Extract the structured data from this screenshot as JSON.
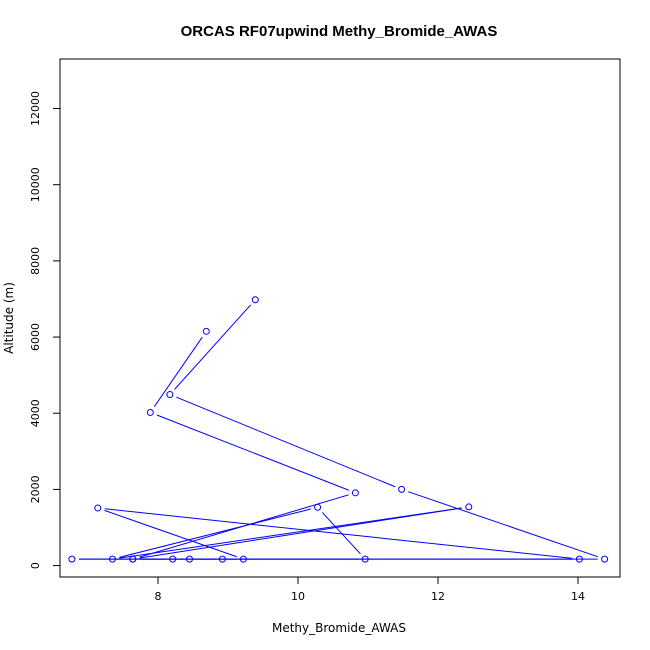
{
  "chart_data": {
    "type": "line",
    "title": "ORCAS RF07upwind Methy_Bromide_AWAS",
    "xlabel": "Methy_Bromide_AWAS",
    "ylabel": "Altitude (m)",
    "xlim": [
      6.6,
      14.6
    ],
    "ylim": [
      -300,
      13300
    ],
    "xticks": [
      8,
      10,
      12,
      14
    ],
    "yticks": [
      0,
      2000,
      4000,
      6000,
      8000,
      10000,
      12000
    ],
    "grid": false,
    "series": [
      {
        "color": "#0000ff",
        "marker": "open-circle",
        "points": [
          {
            "x": 9.39,
            "y": 6980
          },
          {
            "x": 8.17,
            "y": 4490
          },
          {
            "x": 11.48,
            "y": 2000
          },
          {
            "x": 14.38,
            "y": 170
          },
          {
            "x": 6.77,
            "y": 170
          },
          {
            "x": 14.02,
            "y": 170
          },
          {
            "x": 7.14,
            "y": 1510
          },
          {
            "x": 9.22,
            "y": 170
          },
          {
            "x": 8.92,
            "y": 170
          },
          {
            "x": 8.45,
            "y": 170
          },
          {
            "x": 8.21,
            "y": 170
          },
          {
            "x": 7.64,
            "y": 170
          },
          {
            "x": 12.44,
            "y": 1540
          },
          {
            "x": 7.35,
            "y": 170
          },
          {
            "x": 10.28,
            "y": 1530
          },
          {
            "x": 10.96,
            "y": 170
          },
          {
            "x": 7.64,
            "y": 170
          },
          {
            "x": 10.82,
            "y": 1910
          },
          {
            "x": 7.89,
            "y": 4020
          },
          {
            "x": 8.69,
            "y": 6150
          }
        ]
      }
    ]
  }
}
